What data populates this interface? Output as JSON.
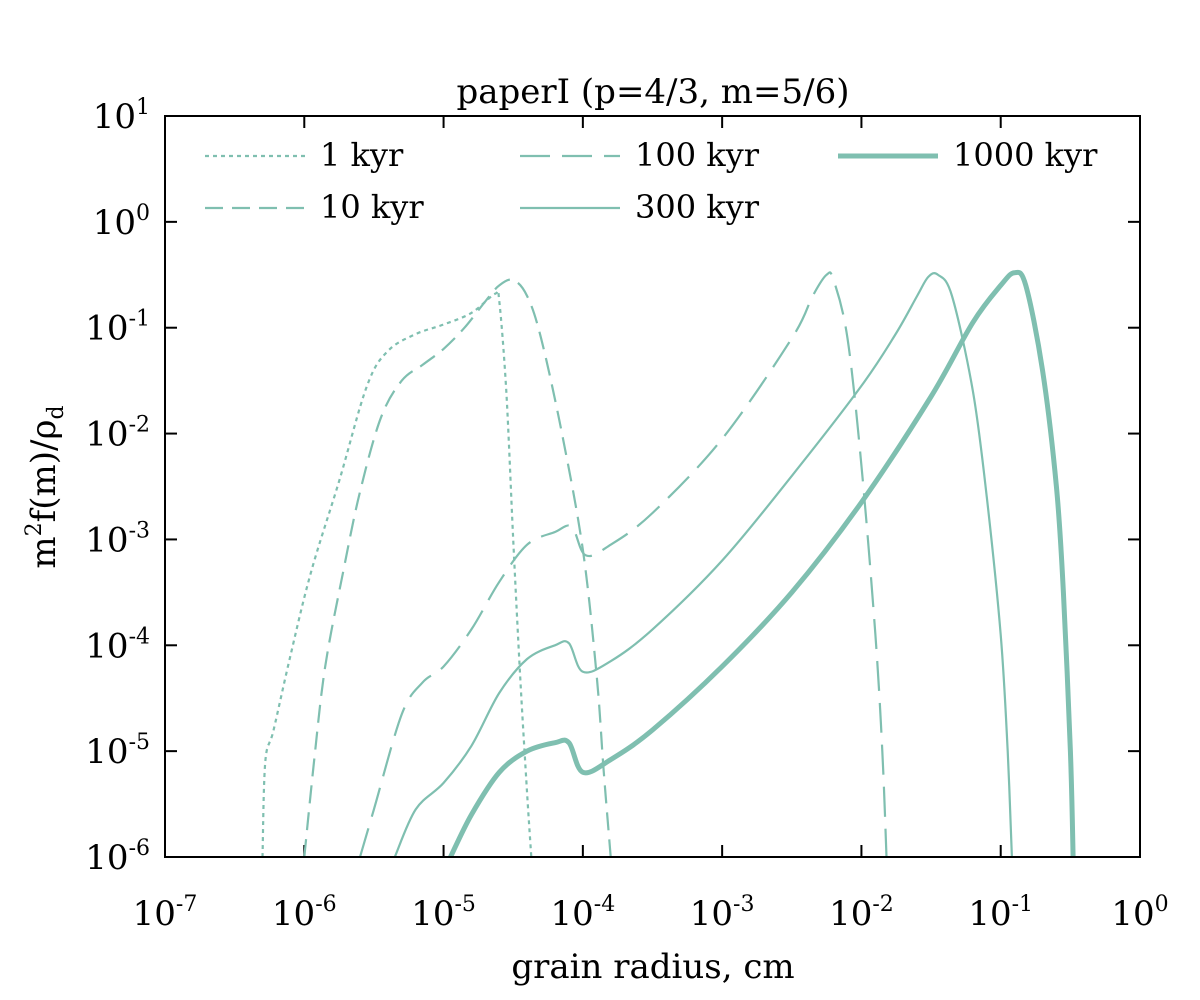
{
  "chart_data": {
    "type": "line",
    "title": "paperI (p=4/3, m=5/6)",
    "xlabel": "grain radius, cm",
    "ylabel": {
      "main": "m",
      "sup": "2",
      "rest": "f(m)/ρ",
      "sub": "d"
    },
    "xscale": "log",
    "yscale": "log",
    "xlim_exp": [
      -7,
      0
    ],
    "ylim_exp": [
      -6,
      1
    ],
    "x_ticks": [
      {
        "base": "10",
        "exp": "-7"
      },
      {
        "base": "10",
        "exp": "-6"
      },
      {
        "base": "10",
        "exp": "-5"
      },
      {
        "base": "10",
        "exp": "-4"
      },
      {
        "base": "10",
        "exp": "-3"
      },
      {
        "base": "10",
        "exp": "-2"
      },
      {
        "base": "10",
        "exp": "-1"
      },
      {
        "base": "10",
        "exp": "0"
      }
    ],
    "y_ticks": [
      {
        "base": "10",
        "exp": "-6"
      },
      {
        "base": "10",
        "exp": "-5"
      },
      {
        "base": "10",
        "exp": "-4"
      },
      {
        "base": "10",
        "exp": "-3"
      },
      {
        "base": "10",
        "exp": "-2"
      },
      {
        "base": "10",
        "exp": "-1"
      },
      {
        "base": "10",
        "exp": "0"
      },
      {
        "base": "10",
        "exp": "1"
      }
    ],
    "legend_position": "top",
    "line_color": "#7fbfb0",
    "series": [
      {
        "name": "1 kyr",
        "style": "dotted",
        "points": [
          [
            -6.3,
            -6.0
          ],
          [
            -6.28,
            -5.1
          ],
          [
            -6.22,
            -4.8
          ],
          [
            -6.1,
            -4.1
          ],
          [
            -5.95,
            -3.3
          ],
          [
            -5.75,
            -2.45
          ],
          [
            -5.55,
            -1.55
          ],
          [
            -5.4,
            -1.22
          ],
          [
            -5.2,
            -1.06
          ],
          [
            -5.0,
            -0.97
          ],
          [
            -4.8,
            -0.86
          ],
          [
            -4.63,
            -0.68
          ],
          [
            -4.6,
            -0.75
          ],
          [
            -4.55,
            -1.6
          ],
          [
            -4.5,
            -3.0
          ],
          [
            -4.45,
            -4.3
          ],
          [
            -4.4,
            -5.4
          ],
          [
            -4.37,
            -6.0
          ]
        ]
      },
      {
        "name": "10 kyr",
        "style": "dashed",
        "points": [
          [
            -6.0,
            -6.0
          ],
          [
            -5.93,
            -5.1
          ],
          [
            -5.85,
            -4.2
          ],
          [
            -5.72,
            -3.3
          ],
          [
            -5.6,
            -2.55
          ],
          [
            -5.45,
            -1.85
          ],
          [
            -5.3,
            -1.5
          ],
          [
            -5.15,
            -1.35
          ],
          [
            -5.0,
            -1.2
          ],
          [
            -4.85,
            -1.0
          ],
          [
            -4.7,
            -0.75
          ],
          [
            -4.6,
            -0.6
          ],
          [
            -4.5,
            -0.55
          ],
          [
            -4.4,
            -0.7
          ],
          [
            -4.3,
            -1.1
          ],
          [
            -4.15,
            -2.0
          ],
          [
            -4.0,
            -3.1
          ],
          [
            -3.9,
            -4.3
          ],
          [
            -3.85,
            -5.2
          ],
          [
            -3.8,
            -6.0
          ]
        ]
      },
      {
        "name": "100 kyr",
        "style": "longdash",
        "points": [
          [
            -5.6,
            -6.0
          ],
          [
            -5.5,
            -5.55
          ],
          [
            -5.3,
            -4.65
          ],
          [
            -5.15,
            -4.35
          ],
          [
            -5.0,
            -4.2
          ],
          [
            -4.8,
            -3.85
          ],
          [
            -4.6,
            -3.4
          ],
          [
            -4.4,
            -3.05
          ],
          [
            -4.2,
            -2.93
          ],
          [
            -4.08,
            -2.88
          ],
          [
            -3.98,
            -3.15
          ],
          [
            -3.8,
            -3.05
          ],
          [
            -3.5,
            -2.75
          ],
          [
            -3.0,
            -2.05
          ],
          [
            -2.5,
            -1.1
          ],
          [
            -2.35,
            -0.7
          ],
          [
            -2.25,
            -0.5
          ],
          [
            -2.2,
            -0.55
          ],
          [
            -2.1,
            -1.1
          ],
          [
            -2.0,
            -2.3
          ],
          [
            -1.9,
            -3.9
          ],
          [
            -1.85,
            -5.0
          ],
          [
            -1.82,
            -6.0
          ]
        ]
      },
      {
        "name": "300 kyr",
        "style": "solid-thin",
        "points": [
          [
            -5.35,
            -6.0
          ],
          [
            -5.2,
            -5.55
          ],
          [
            -5.0,
            -5.3
          ],
          [
            -4.8,
            -4.95
          ],
          [
            -4.6,
            -4.45
          ],
          [
            -4.4,
            -4.13
          ],
          [
            -4.2,
            -4.0
          ],
          [
            -4.1,
            -3.98
          ],
          [
            -4.0,
            -4.25
          ],
          [
            -3.8,
            -4.15
          ],
          [
            -3.5,
            -3.85
          ],
          [
            -3.0,
            -3.2
          ],
          [
            -2.5,
            -2.4
          ],
          [
            -2.0,
            -1.55
          ],
          [
            -1.75,
            -1.05
          ],
          [
            -1.6,
            -0.7
          ],
          [
            -1.52,
            -0.52
          ],
          [
            -1.45,
            -0.5
          ],
          [
            -1.35,
            -0.7
          ],
          [
            -1.2,
            -1.6
          ],
          [
            -1.1,
            -2.6
          ],
          [
            -1.0,
            -3.9
          ],
          [
            -0.95,
            -5.0
          ],
          [
            -0.92,
            -6.0
          ]
        ]
      },
      {
        "name": "1000 kyr",
        "style": "solid-thick",
        "points": [
          [
            -4.95,
            -6.0
          ],
          [
            -4.8,
            -5.6
          ],
          [
            -4.6,
            -5.2
          ],
          [
            -4.4,
            -5.0
          ],
          [
            -4.2,
            -4.92
          ],
          [
            -4.1,
            -4.92
          ],
          [
            -4.0,
            -5.2
          ],
          [
            -3.8,
            -5.08
          ],
          [
            -3.5,
            -4.8
          ],
          [
            -3.0,
            -4.2
          ],
          [
            -2.5,
            -3.5
          ],
          [
            -2.0,
            -2.65
          ],
          [
            -1.5,
            -1.65
          ],
          [
            -1.2,
            -0.95
          ],
          [
            -1.0,
            -0.6
          ],
          [
            -0.9,
            -0.48
          ],
          [
            -0.82,
            -0.6
          ],
          [
            -0.7,
            -1.4
          ],
          [
            -0.6,
            -2.5
          ],
          [
            -0.55,
            -3.5
          ],
          [
            -0.5,
            -5.0
          ],
          [
            -0.48,
            -6.0
          ]
        ]
      }
    ]
  }
}
